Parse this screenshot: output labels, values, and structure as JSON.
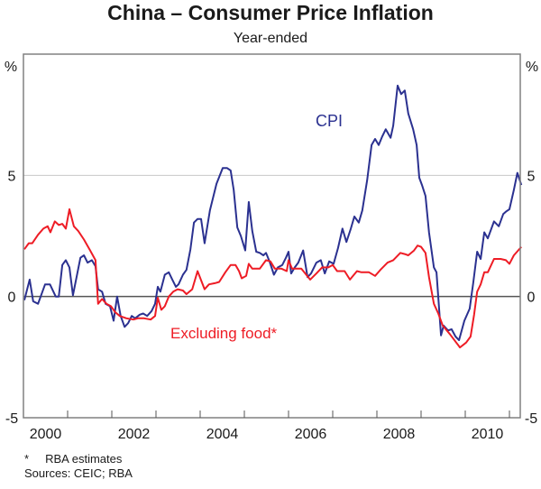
{
  "chart_data": {
    "type": "line",
    "title": "China – Consumer Price Inflation",
    "subtitle": "Year-ended",
    "ylabel_left": "%",
    "ylabel_right": "%",
    "ylim": [
      -5,
      10
    ],
    "xlim": [
      2000,
      2011.05
    ],
    "yticks": [
      -5,
      0,
      5
    ],
    "xtick_labels": [
      "2000",
      "2002",
      "2004",
      "2006",
      "2008",
      "2010"
    ],
    "grid": true,
    "footnote": "*     RBA estimates",
    "sources": "Sources: CEIC; RBA",
    "series": [
      {
        "name": "CPI",
        "color": "#2b3190",
        "points": [
          [
            2000.02,
            -0.15
          ],
          [
            2000.14,
            0.7
          ],
          [
            2000.22,
            -0.2
          ],
          [
            2000.33,
            -0.3
          ],
          [
            2000.49,
            0.5
          ],
          [
            2000.6,
            0.5
          ],
          [
            2000.73,
            0
          ],
          [
            2000.8,
            0
          ],
          [
            2000.88,
            1.3
          ],
          [
            2000.96,
            1.5
          ],
          [
            2001.04,
            1.2
          ],
          [
            2001.12,
            0.05
          ],
          [
            2001.29,
            1.6
          ],
          [
            2001.37,
            1.7
          ],
          [
            2001.45,
            1.4
          ],
          [
            2001.55,
            1.5
          ],
          [
            2001.63,
            1.25
          ],
          [
            2001.69,
            0.3
          ],
          [
            2001.78,
            0.2
          ],
          [
            2001.86,
            -0.3
          ],
          [
            2001.96,
            -0.4
          ],
          [
            2002.04,
            -1.0
          ],
          [
            2002.12,
            0
          ],
          [
            2002.2,
            -0.8
          ],
          [
            2002.29,
            -1.25
          ],
          [
            2002.37,
            -1.1
          ],
          [
            2002.45,
            -0.8
          ],
          [
            2002.53,
            -0.9
          ],
          [
            2002.63,
            -0.75
          ],
          [
            2002.71,
            -0.7
          ],
          [
            2002.8,
            -0.8
          ],
          [
            2002.9,
            -0.6
          ],
          [
            2002.98,
            -0.3
          ],
          [
            2003.04,
            0.4
          ],
          [
            2003.1,
            0.2
          ],
          [
            2003.2,
            0.9
          ],
          [
            2003.29,
            1.0
          ],
          [
            2003.37,
            0.7
          ],
          [
            2003.45,
            0.4
          ],
          [
            2003.51,
            0.5
          ],
          [
            2003.61,
            0.9
          ],
          [
            2003.69,
            1.1
          ],
          [
            2003.78,
            1.95
          ],
          [
            2003.86,
            3.05
          ],
          [
            2003.94,
            3.2
          ],
          [
            2004.02,
            3.2
          ],
          [
            2004.1,
            2.2
          ],
          [
            2004.22,
            3.55
          ],
          [
            2004.37,
            4.65
          ],
          [
            2004.51,
            5.3
          ],
          [
            2004.61,
            5.3
          ],
          [
            2004.69,
            5.2
          ],
          [
            2004.76,
            4.4
          ],
          [
            2004.84,
            2.85
          ],
          [
            2004.92,
            2.5
          ],
          [
            2005.02,
            1.9
          ],
          [
            2005.1,
            3.9
          ],
          [
            2005.18,
            2.7
          ],
          [
            2005.27,
            1.85
          ],
          [
            2005.35,
            1.8
          ],
          [
            2005.43,
            1.7
          ],
          [
            2005.49,
            1.8
          ],
          [
            2005.57,
            1.45
          ],
          [
            2005.67,
            0.9
          ],
          [
            2005.76,
            1.2
          ],
          [
            2005.86,
            1.3
          ],
          [
            2005.94,
            1.6
          ],
          [
            2006.0,
            1.85
          ],
          [
            2006.06,
            0.95
          ],
          [
            2006.14,
            1.2
          ],
          [
            2006.22,
            1.4
          ],
          [
            2006.33,
            1.9
          ],
          [
            2006.43,
            0.8
          ],
          [
            2006.51,
            0.95
          ],
          [
            2006.63,
            1.4
          ],
          [
            2006.73,
            1.5
          ],
          [
            2006.82,
            0.95
          ],
          [
            2006.92,
            1.45
          ],
          [
            2007.02,
            1.35
          ],
          [
            2007.12,
            2.0
          ],
          [
            2007.22,
            2.8
          ],
          [
            2007.31,
            2.25
          ],
          [
            2007.41,
            2.8
          ],
          [
            2007.49,
            3.3
          ],
          [
            2007.59,
            3.05
          ],
          [
            2007.67,
            3.55
          ],
          [
            2007.78,
            4.8
          ],
          [
            2007.88,
            6.25
          ],
          [
            2007.96,
            6.5
          ],
          [
            2008.04,
            6.25
          ],
          [
            2008.12,
            6.6
          ],
          [
            2008.2,
            6.9
          ],
          [
            2008.31,
            6.55
          ],
          [
            2008.37,
            7.05
          ],
          [
            2008.47,
            8.7
          ],
          [
            2008.55,
            8.35
          ],
          [
            2008.63,
            8.5
          ],
          [
            2008.71,
            7.55
          ],
          [
            2008.82,
            6.9
          ],
          [
            2008.9,
            6.25
          ],
          [
            2008.96,
            4.9
          ],
          [
            2009.02,
            4.6
          ],
          [
            2009.1,
            4.15
          ],
          [
            2009.18,
            2.65
          ],
          [
            2009.29,
            1.2
          ],
          [
            2009.35,
            1.0
          ],
          [
            2009.45,
            -1.6
          ],
          [
            2009.51,
            -1.2
          ],
          [
            2009.61,
            -1.4
          ],
          [
            2009.69,
            -1.35
          ],
          [
            2009.78,
            -1.65
          ],
          [
            2009.86,
            -1.8
          ],
          [
            2009.98,
            -1.0
          ],
          [
            2010.1,
            -0.5
          ],
          [
            2010.18,
            0.55
          ],
          [
            2010.27,
            1.85
          ],
          [
            2010.35,
            1.55
          ],
          [
            2010.43,
            2.65
          ],
          [
            2010.51,
            2.4
          ],
          [
            2010.65,
            3.1
          ],
          [
            2010.76,
            2.9
          ],
          [
            2010.86,
            3.4
          ],
          [
            2010.92,
            3.5
          ],
          [
            2011.0,
            3.6
          ],
          [
            2011.1,
            4.4
          ],
          [
            2011.18,
            5.1
          ],
          [
            2011.27,
            4.6
          ]
        ]
      },
      {
        "name": "Excluding food*",
        "color": "#ee1c25",
        "points": [
          [
            2000.02,
            1.95
          ],
          [
            2000.12,
            2.2
          ],
          [
            2000.2,
            2.2
          ],
          [
            2000.33,
            2.55
          ],
          [
            2000.45,
            2.8
          ],
          [
            2000.55,
            2.9
          ],
          [
            2000.61,
            2.65
          ],
          [
            2000.71,
            3.1
          ],
          [
            2000.8,
            2.95
          ],
          [
            2000.88,
            3.0
          ],
          [
            2000.96,
            2.8
          ],
          [
            2001.04,
            3.6
          ],
          [
            2001.14,
            2.9
          ],
          [
            2001.24,
            2.7
          ],
          [
            2001.37,
            2.35
          ],
          [
            2001.51,
            1.9
          ],
          [
            2001.63,
            1.5
          ],
          [
            2001.69,
            -0.3
          ],
          [
            2001.78,
            -0.1
          ],
          [
            2001.88,
            -0.3
          ],
          [
            2001.98,
            -0.4
          ],
          [
            2002.08,
            -0.65
          ],
          [
            2002.18,
            -0.8
          ],
          [
            2002.33,
            -0.9
          ],
          [
            2002.49,
            -0.95
          ],
          [
            2002.59,
            -0.9
          ],
          [
            2002.73,
            -0.9
          ],
          [
            2002.88,
            -0.95
          ],
          [
            2002.98,
            -0.8
          ],
          [
            2003.04,
            -0.05
          ],
          [
            2003.12,
            -0.55
          ],
          [
            2003.2,
            -0.4
          ],
          [
            2003.29,
            0
          ],
          [
            2003.39,
            0.2
          ],
          [
            2003.49,
            0.3
          ],
          [
            2003.61,
            0.25
          ],
          [
            2003.69,
            0.1
          ],
          [
            2003.82,
            0.3
          ],
          [
            2003.94,
            1.05
          ],
          [
            2004.1,
            0.3
          ],
          [
            2004.2,
            0.5
          ],
          [
            2004.33,
            0.55
          ],
          [
            2004.43,
            0.6
          ],
          [
            2004.57,
            1.0
          ],
          [
            2004.69,
            1.3
          ],
          [
            2004.8,
            1.3
          ],
          [
            2004.88,
            1.05
          ],
          [
            2004.94,
            0.75
          ],
          [
            2005.04,
            0.85
          ],
          [
            2005.1,
            1.35
          ],
          [
            2005.18,
            1.15
          ],
          [
            2005.35,
            1.15
          ],
          [
            2005.49,
            1.5
          ],
          [
            2005.59,
            1.45
          ],
          [
            2005.69,
            1.15
          ],
          [
            2005.84,
            1.15
          ],
          [
            2005.96,
            1.05
          ],
          [
            2006.0,
            1.5
          ],
          [
            2006.08,
            1.15
          ],
          [
            2006.29,
            1.15
          ],
          [
            2006.49,
            0.7
          ],
          [
            2006.63,
            0.95
          ],
          [
            2006.76,
            1.2
          ],
          [
            2006.9,
            1.2
          ],
          [
            2007.0,
            1.3
          ],
          [
            2007.1,
            1.05
          ],
          [
            2007.27,
            1.05
          ],
          [
            2007.39,
            0.7
          ],
          [
            2007.55,
            1.05
          ],
          [
            2007.65,
            1.0
          ],
          [
            2007.82,
            1.0
          ],
          [
            2007.96,
            0.85
          ],
          [
            2008.08,
            1.1
          ],
          [
            2008.24,
            1.4
          ],
          [
            2008.37,
            1.5
          ],
          [
            2008.53,
            1.8
          ],
          [
            2008.63,
            1.75
          ],
          [
            2008.71,
            1.7
          ],
          [
            2008.84,
            1.9
          ],
          [
            2008.92,
            2.1
          ],
          [
            2009.0,
            2.05
          ],
          [
            2009.1,
            1.8
          ],
          [
            2009.18,
            0.8
          ],
          [
            2009.29,
            -0.3
          ],
          [
            2009.39,
            -0.7
          ],
          [
            2009.49,
            -1.2
          ],
          [
            2009.65,
            -1.55
          ],
          [
            2009.88,
            -2.1
          ],
          [
            2010.02,
            -1.9
          ],
          [
            2010.12,
            -1.65
          ],
          [
            2010.2,
            -0.75
          ],
          [
            2010.27,
            0.2
          ],
          [
            2010.35,
            0.5
          ],
          [
            2010.43,
            1.0
          ],
          [
            2010.51,
            1.0
          ],
          [
            2010.65,
            1.55
          ],
          [
            2010.8,
            1.55
          ],
          [
            2010.92,
            1.5
          ],
          [
            2011.0,
            1.35
          ],
          [
            2011.1,
            1.7
          ],
          [
            2011.27,
            2.05
          ]
        ]
      }
    ],
    "annotations": [
      {
        "text": "CPI",
        "series": "CPI"
      },
      {
        "text": "Excluding food*",
        "series": "Excluding food*"
      }
    ]
  }
}
